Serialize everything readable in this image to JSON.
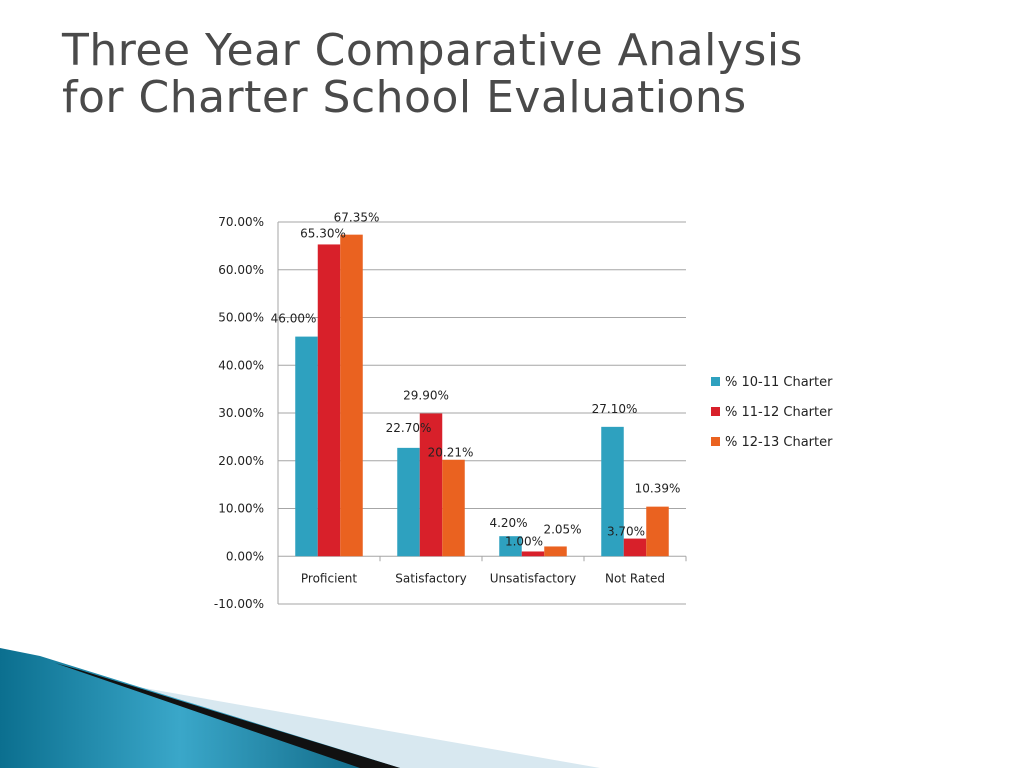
{
  "slide": {
    "title_line1": "Three Year Comparative Analysis",
    "title_line2": "for Charter School Evaluations"
  },
  "chart_data": {
    "type": "bar",
    "categories": [
      "Proficient",
      "Satisfactory",
      "Unsatisfactory",
      "Not Rated"
    ],
    "series": [
      {
        "name": "% 10-11 Charter",
        "color": "#2ea1bf",
        "values": [
          46.0,
          22.7,
          4.2,
          27.1
        ]
      },
      {
        "name": "% 11-12 Charter",
        "color": "#d8202a",
        "values": [
          65.3,
          29.9,
          1.0,
          3.7
        ]
      },
      {
        "name": "% 12-13 Charter",
        "color": "#ea6220",
        "values": [
          67.35,
          20.21,
          2.05,
          10.39
        ]
      }
    ],
    "ylim": [
      -10,
      70
    ],
    "yticks": [
      "-10.00%",
      "0.00%",
      "10.00%",
      "20.00%",
      "30.00%",
      "40.00%",
      "50.00%",
      "60.00%",
      "70.00%"
    ],
    "data_labels": [
      [
        "46.00%",
        "22.70%",
        "4.20%",
        "27.10%"
      ],
      [
        "65.30%",
        "29.90%",
        "1.00%",
        "3.70%"
      ],
      [
        "67.35%",
        "20.21%",
        "2.05%",
        "10.39%"
      ]
    ],
    "grid": true,
    "legend": "right",
    "title": "",
    "xlabel": "",
    "ylabel": ""
  }
}
